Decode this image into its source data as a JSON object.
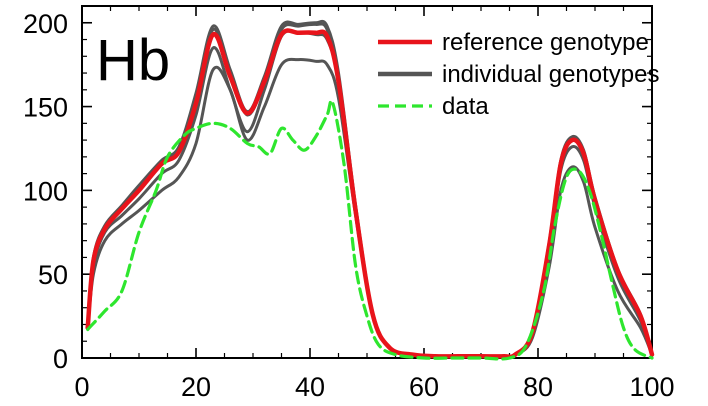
{
  "chart_data": {
    "type": "line",
    "title": "",
    "xlabel": "",
    "ylabel": "",
    "panel_label": "Hb",
    "xlim": [
      0,
      100
    ],
    "ylim": [
      0,
      210
    ],
    "x_ticks": [
      0,
      20,
      40,
      60,
      80,
      100
    ],
    "y_ticks": [
      0,
      50,
      100,
      150,
      200
    ],
    "x_tick_labels": [
      "0",
      "20",
      "40",
      "60",
      "80",
      "100"
    ],
    "y_tick_labels": [
      "0",
      "50",
      "100",
      "150",
      "200"
    ],
    "grid": false,
    "legend_position": "top-right",
    "legend": [
      {
        "label": "reference genotype",
        "color": "#e8141b",
        "style": "solid"
      },
      {
        "label": "individual genotypes",
        "color": "#555555",
        "style": "solid"
      },
      {
        "label": "data",
        "color": "#2ee62e",
        "style": "dashed"
      }
    ],
    "series": [
      {
        "name": "individual genotypes",
        "role": "individual",
        "color": "#555555",
        "x": [
          1,
          2,
          4,
          7,
          10,
          14,
          17,
          20,
          23,
          26,
          29,
          32,
          35,
          38,
          41,
          43,
          45,
          48,
          51,
          54,
          58,
          62,
          66,
          70,
          74,
          76,
          79,
          82,
          84,
          86,
          88,
          90,
          94,
          98,
          100
        ],
        "y": [
          18,
          50,
          70,
          80,
          88,
          100,
          108,
          128,
          172,
          160,
          130,
          150,
          175,
          178,
          177,
          175,
          155,
          85,
          25,
          6,
          2,
          1,
          1,
          1,
          1,
          2,
          12,
          55,
          100,
          114,
          105,
          78,
          40,
          18,
          2
        ]
      },
      {
        "name": "individual genotypes",
        "role": "individual",
        "color": "#555555",
        "x": [
          1,
          2,
          4,
          7,
          10,
          14,
          17,
          20,
          23,
          26,
          29,
          32,
          35,
          38,
          41,
          43,
          45,
          48,
          51,
          54,
          58,
          62,
          66,
          70,
          74,
          76,
          79,
          82,
          84,
          86,
          88,
          90,
          94,
          98,
          100
        ],
        "y": [
          18,
          55,
          75,
          85,
          95,
          110,
          118,
          145,
          185,
          160,
          135,
          160,
          192,
          194,
          193,
          190,
          165,
          88,
          26,
          6,
          2,
          1,
          1,
          1,
          1,
          2,
          14,
          65,
          112,
          126,
          118,
          90,
          48,
          22,
          2
        ]
      },
      {
        "name": "individual genotypes",
        "role": "individual",
        "color": "#555555",
        "x": [
          1,
          2,
          4,
          7,
          10,
          14,
          17,
          20,
          23,
          26,
          29,
          32,
          35,
          38,
          41,
          43,
          45,
          48,
          51,
          54,
          58,
          62,
          66,
          70,
          74,
          76,
          79,
          82,
          84,
          86,
          88,
          90,
          94,
          98,
          100
        ],
        "y": [
          18,
          59,
          78,
          90,
          102,
          117,
          124,
          155,
          196,
          170,
          145,
          165,
          196,
          198,
          199,
          196,
          168,
          90,
          27,
          6,
          2,
          1,
          1,
          1,
          1,
          2,
          15,
          68,
          116,
          130,
          122,
          94,
          52,
          25,
          2
        ]
      },
      {
        "name": "individual genotypes",
        "role": "individual",
        "color": "#555555",
        "x": [
          1,
          2,
          4,
          7,
          10,
          14,
          17,
          20,
          23,
          26,
          29,
          32,
          35,
          38,
          41,
          43,
          45,
          48,
          51,
          54,
          58,
          62,
          66,
          70,
          74,
          76,
          79,
          82,
          84,
          86,
          88,
          90,
          94,
          98,
          100
        ],
        "y": [
          19,
          60,
          79,
          91,
          103,
          118,
          126,
          158,
          198,
          172,
          147,
          168,
          198,
          199,
          200,
          198,
          170,
          91,
          27,
          6,
          2,
          1,
          1,
          1,
          1,
          2,
          15,
          70,
          118,
          132,
          124,
          96,
          53,
          26,
          2
        ]
      },
      {
        "name": "reference genotype",
        "role": "reference",
        "color": "#e8141b",
        "x": [
          1,
          2,
          4,
          7,
          10,
          14,
          17,
          20,
          23,
          26,
          29,
          32,
          35,
          38,
          41,
          43,
          45,
          48,
          51,
          54,
          58,
          62,
          66,
          70,
          74,
          76,
          79,
          82,
          84,
          86,
          88,
          90,
          94,
          98,
          100
        ],
        "y": [
          18,
          58,
          77,
          89,
          100,
          116,
          123,
          152,
          193,
          168,
          146,
          165,
          193,
          194,
          194,
          192,
          165,
          88,
          26,
          6,
          2,
          1,
          1,
          1,
          1,
          2,
          15,
          68,
          116,
          130,
          122,
          94,
          52,
          25,
          2
        ]
      },
      {
        "name": "data",
        "role": "data",
        "color": "#2ee62e",
        "x": [
          1,
          4,
          7,
          10,
          13,
          15,
          18,
          20,
          23,
          26,
          29,
          31,
          33,
          35,
          37,
          39,
          41,
          43,
          44,
          46,
          48,
          50,
          52,
          55,
          60,
          65,
          70,
          75,
          78,
          81,
          83,
          85,
          87,
          89,
          91,
          93,
          95,
          97,
          100
        ],
        "y": [
          17,
          28,
          40,
          75,
          100,
          120,
          133,
          137,
          140,
          137,
          128,
          126,
          122,
          137,
          130,
          124,
          132,
          145,
          152,
          115,
          55,
          25,
          8,
          2,
          0,
          0,
          0,
          0,
          8,
          40,
          80,
          108,
          112,
          100,
          75,
          45,
          18,
          5,
          0
        ]
      }
    ]
  }
}
